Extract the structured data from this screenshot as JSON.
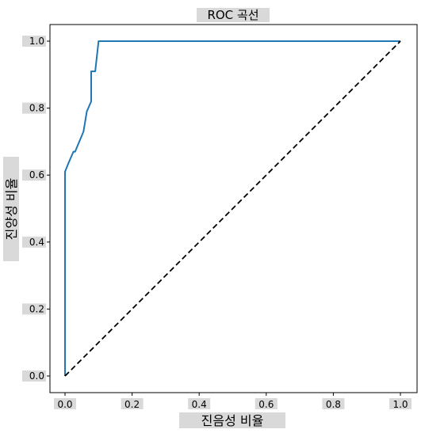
{
  "chart_data": {
    "type": "line",
    "title": "ROC 곡선",
    "xlabel": "진음성 비율",
    "ylabel": "진양성 비율",
    "xlim": [
      0.0,
      1.0
    ],
    "ylim": [
      0.0,
      1.0
    ],
    "grid": false,
    "xticks": [
      "0.0",
      "0.2",
      "0.4",
      "0.6",
      "0.8",
      "1.0"
    ],
    "yticks": [
      "0.0",
      "0.2",
      "0.4",
      "0.6",
      "0.8",
      "1.0"
    ],
    "series": [
      {
        "color": "#1f77b4",
        "style": "solid",
        "x": [
          0.0,
          0.0,
          0.01,
          0.025,
          0.03,
          0.055,
          0.065,
          0.078,
          0.078,
          0.09,
          0.1,
          1.0
        ],
        "y": [
          0.0,
          0.61,
          0.635,
          0.67,
          0.67,
          0.73,
          0.79,
          0.82,
          0.91,
          0.91,
          1.0,
          1.0
        ]
      },
      {
        "color": "#000000",
        "style": "dashed",
        "x": [
          0.0,
          1.0
        ],
        "y": [
          0.0,
          1.0
        ]
      }
    ]
  }
}
